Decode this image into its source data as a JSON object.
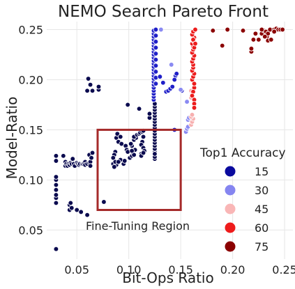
{
  "chart_data": {
    "type": "scatter",
    "title": "NEMO Search Pareto Front",
    "xlabel": "Bit-Ops Ratio",
    "ylabel": "Model-Ratio",
    "xlim": [
      0.021,
      0.258
    ],
    "ylim": [
      0.021,
      0.258
    ],
    "x_ticks": [
      0.05,
      0.1,
      0.15,
      0.2,
      0.25
    ],
    "x_tick_labels": [
      "0.05",
      "0.10",
      "0.15",
      "0.20",
      "0.25"
    ],
    "y_ticks": [
      0.05,
      0.1,
      0.15,
      0.2,
      0.25
    ],
    "y_tick_labels": [
      "0.05",
      "0.10",
      "0.15",
      "0.20",
      "0.25"
    ],
    "grid": true,
    "legend": {
      "title": "Top1 Accuracy",
      "placement": "bottom-right",
      "entries": [
        {
          "label": "15",
          "color": "#0a0a9e"
        },
        {
          "label": "30",
          "color": "#8585f0"
        },
        {
          "label": "45",
          "color": "#f9b6b6"
        },
        {
          "label": "60",
          "color": "#ee1b1b"
        },
        {
          "label": "75",
          "color": "#8b0000"
        }
      ]
    },
    "annotation": {
      "text": "Fine-Tuning Region",
      "region": {
        "x": [
          0.07,
          0.15
        ],
        "y": [
          0.07,
          0.15
        ]
      },
      "box_color": "#a52a2a"
    },
    "series": [
      {
        "color": "#0b0b4f",
        "points": [
          [
            0.03,
            0.031
          ],
          [
            0.03,
            0.077
          ],
          [
            0.03,
            0.082
          ],
          [
            0.03,
            0.085
          ],
          [
            0.03,
            0.09
          ],
          [
            0.03,
            0.095
          ],
          [
            0.03,
            0.1
          ],
          [
            0.03,
            0.103
          ],
          [
            0.03,
            0.119
          ],
          [
            0.03,
            0.124
          ],
          [
            0.037,
            0.124
          ],
          [
            0.039,
            0.114
          ],
          [
            0.039,
            0.118
          ],
          [
            0.04,
            0.116
          ],
          [
            0.041,
            0.114
          ],
          [
            0.042,
            0.116
          ],
          [
            0.043,
            0.115
          ],
          [
            0.044,
            0.117
          ],
          [
            0.045,
            0.116
          ],
          [
            0.046,
            0.121
          ],
          [
            0.047,
            0.116
          ],
          [
            0.048,
            0.114
          ],
          [
            0.05,
            0.117
          ],
          [
            0.051,
            0.116
          ],
          [
            0.052,
            0.115
          ],
          [
            0.053,
            0.116
          ],
          [
            0.055,
            0.116
          ],
          [
            0.056,
            0.116
          ],
          [
            0.057,
            0.117
          ],
          [
            0.058,
            0.118
          ],
          [
            0.058,
            0.115
          ],
          [
            0.06,
            0.116
          ],
          [
            0.062,
            0.117
          ],
          [
            0.063,
            0.118
          ],
          [
            0.063,
            0.114
          ],
          [
            0.043,
            0.07
          ],
          [
            0.043,
            0.075
          ],
          [
            0.044,
            0.077
          ],
          [
            0.045,
            0.072
          ],
          [
            0.05,
            0.07
          ],
          [
            0.054,
            0.068
          ],
          [
            0.06,
            0.065
          ],
          [
            0.076,
            0.078
          ],
          [
            0.06,
            0.189
          ],
          [
            0.061,
            0.201
          ],
          [
            0.063,
            0.195
          ],
          [
            0.065,
            0.189
          ],
          [
            0.062,
            0.125
          ],
          [
            0.065,
            0.127
          ],
          [
            0.064,
            0.122
          ],
          [
            0.071,
            0.19
          ],
          [
            0.071,
            0.193
          ],
          [
            0.088,
            0.142
          ],
          [
            0.089,
            0.146
          ],
          [
            0.092,
            0.143
          ],
          [
            0.09,
            0.138
          ],
          [
            0.093,
            0.136
          ],
          [
            0.097,
            0.134
          ],
          [
            0.098,
            0.13
          ],
          [
            0.099,
            0.128
          ],
          [
            0.087,
            0.128
          ],
          [
            0.086,
            0.125
          ],
          [
            0.085,
            0.122
          ],
          [
            0.085,
            0.116
          ],
          [
            0.088,
            0.115
          ],
          [
            0.087,
            0.118
          ],
          [
            0.086,
            0.113
          ],
          [
            0.092,
            0.12
          ],
          [
            0.09,
            0.118
          ],
          [
            0.095,
            0.116
          ],
          [
            0.096,
            0.119
          ],
          [
            0.101,
            0.122
          ],
          [
            0.103,
            0.124
          ],
          [
            0.104,
            0.127
          ],
          [
            0.105,
            0.125
          ],
          [
            0.106,
            0.13
          ],
          [
            0.103,
            0.129
          ],
          [
            0.103,
            0.134
          ],
          [
            0.102,
            0.136
          ],
          [
            0.105,
            0.14
          ],
          [
            0.107,
            0.142
          ],
          [
            0.105,
            0.143
          ],
          [
            0.108,
            0.145
          ],
          [
            0.11,
            0.146
          ],
          [
            0.111,
            0.147
          ],
          [
            0.113,
            0.148
          ],
          [
            0.114,
            0.149
          ],
          [
            0.114,
            0.143
          ],
          [
            0.113,
            0.138
          ],
          [
            0.112,
            0.135
          ],
          [
            0.114,
            0.132
          ],
          [
            0.115,
            0.129
          ],
          [
            0.112,
            0.126
          ],
          [
            0.112,
            0.124
          ],
          [
            0.114,
            0.127
          ],
          [
            0.099,
            0.175
          ],
          [
            0.11,
            0.171
          ],
          [
            0.12,
            0.162
          ],
          [
            0.12,
            0.166
          ],
          [
            0.125,
            0.128
          ],
          [
            0.125,
            0.131
          ],
          [
            0.125,
            0.134
          ],
          [
            0.125,
            0.137
          ],
          [
            0.125,
            0.14
          ],
          [
            0.125,
            0.143
          ],
          [
            0.125,
            0.146
          ],
          [
            0.125,
            0.149
          ],
          [
            0.125,
            0.152
          ],
          [
            0.125,
            0.155
          ],
          [
            0.125,
            0.158
          ],
          [
            0.125,
            0.161
          ],
          [
            0.125,
            0.164
          ],
          [
            0.125,
            0.167
          ],
          [
            0.125,
            0.17
          ],
          [
            0.125,
            0.173
          ],
          [
            0.125,
            0.176
          ],
          [
            0.125,
            0.121
          ],
          [
            0.125,
            0.123
          ],
          [
            0.125,
            0.126
          ]
        ]
      },
      {
        "color": "#1f1fc8",
        "points": [
          [
            0.124,
            0.18
          ],
          [
            0.124,
            0.183
          ],
          [
            0.124,
            0.186
          ],
          [
            0.124,
            0.189
          ],
          [
            0.124,
            0.192
          ],
          [
            0.124,
            0.195
          ],
          [
            0.124,
            0.198
          ],
          [
            0.124,
            0.201
          ],
          [
            0.124,
            0.204
          ],
          [
            0.124,
            0.207
          ],
          [
            0.124,
            0.21
          ],
          [
            0.124,
            0.213
          ],
          [
            0.124,
            0.216
          ],
          [
            0.124,
            0.219
          ],
          [
            0.124,
            0.222
          ],
          [
            0.124,
            0.225
          ],
          [
            0.124,
            0.228
          ],
          [
            0.124,
            0.231
          ],
          [
            0.124,
            0.234
          ],
          [
            0.124,
            0.237
          ],
          [
            0.124,
            0.24
          ],
          [
            0.124,
            0.243
          ],
          [
            0.124,
            0.246
          ],
          [
            0.124,
            0.249
          ],
          [
            0.126,
            0.196
          ],
          [
            0.126,
            0.202
          ],
          [
            0.126,
            0.208
          ],
          [
            0.126,
            0.214
          ],
          [
            0.126,
            0.22
          ],
          [
            0.126,
            0.226
          ],
          [
            0.126,
            0.232
          ],
          [
            0.126,
            0.238
          ],
          [
            0.126,
            0.244
          ],
          [
            0.126,
            0.25
          ],
          [
            0.13,
            0.203
          ],
          [
            0.133,
            0.197
          ],
          [
            0.136,
            0.188
          ],
          [
            0.138,
            0.189
          ],
          [
            0.14,
            0.191
          ],
          [
            0.142,
            0.193
          ],
          [
            0.145,
            0.204
          ],
          [
            0.146,
            0.206
          ],
          [
            0.144,
            0.2
          ],
          [
            0.151,
            0.189
          ],
          [
            0.144,
            0.15
          ]
        ]
      },
      {
        "color": "#8a8af2",
        "points": [
          [
            0.131,
            0.25
          ],
          [
            0.141,
            0.215
          ],
          [
            0.15,
            0.19
          ],
          [
            0.155,
            0.148
          ],
          [
            0.156,
            0.151
          ],
          [
            0.157,
            0.153
          ],
          [
            0.157,
            0.16
          ],
          [
            0.158,
            0.162
          ],
          [
            0.156,
            0.178
          ]
        ]
      },
      {
        "color": "#f7b0b0",
        "points": [
          [
            0.16,
            0.155
          ],
          [
            0.161,
            0.158
          ],
          [
            0.162,
            0.161
          ],
          [
            0.16,
            0.163
          ],
          [
            0.161,
            0.165
          ],
          [
            0.16,
            0.182
          ],
          [
            0.161,
            0.186
          ],
          [
            0.16,
            0.189
          ]
        ]
      },
      {
        "color": "#ec1c1c",
        "points": [
          [
            0.161,
            0.2
          ],
          [
            0.162,
            0.203
          ],
          [
            0.163,
            0.206
          ],
          [
            0.161,
            0.209
          ],
          [
            0.162,
            0.212
          ],
          [
            0.162,
            0.215
          ],
          [
            0.161,
            0.218
          ],
          [
            0.162,
            0.221
          ],
          [
            0.163,
            0.224
          ],
          [
            0.161,
            0.227
          ],
          [
            0.162,
            0.23
          ],
          [
            0.162,
            0.233
          ],
          [
            0.161,
            0.236
          ],
          [
            0.162,
            0.239
          ],
          [
            0.163,
            0.242
          ],
          [
            0.161,
            0.245
          ],
          [
            0.162,
            0.248
          ],
          [
            0.164,
            0.25
          ],
          [
            0.163,
            0.192
          ],
          [
            0.162,
            0.188
          ],
          [
            0.161,
            0.184
          ],
          [
            0.163,
            0.18
          ],
          [
            0.163,
            0.176
          ],
          [
            0.163,
            0.172
          ],
          [
            0.163,
            0.196
          ],
          [
            0.163,
            0.232
          ],
          [
            0.162,
            0.24
          ],
          [
            0.164,
            0.236
          ]
        ]
      },
      {
        "color": "#8b0000",
        "points": [
          [
            0.181,
            0.249
          ],
          [
            0.19,
            0.234
          ],
          [
            0.195,
            0.25
          ],
          [
            0.21,
            0.249
          ],
          [
            0.218,
            0.228
          ],
          [
            0.218,
            0.231
          ],
          [
            0.22,
            0.24
          ],
          [
            0.222,
            0.246
          ],
          [
            0.225,
            0.24
          ],
          [
            0.228,
            0.246
          ],
          [
            0.23,
            0.249
          ],
          [
            0.232,
            0.248
          ],
          [
            0.233,
            0.243
          ],
          [
            0.234,
            0.246
          ],
          [
            0.236,
            0.25
          ],
          [
            0.24,
            0.25
          ],
          [
            0.242,
            0.251
          ],
          [
            0.244,
            0.25
          ],
          [
            0.246,
            0.25
          ],
          [
            0.248,
            0.25
          ],
          [
            0.228,
            0.25
          ],
          [
            0.231,
            0.243
          ],
          [
            0.234,
            0.239
          ],
          [
            0.237,
            0.24
          ],
          [
            0.24,
            0.248
          ]
        ]
      }
    ]
  }
}
